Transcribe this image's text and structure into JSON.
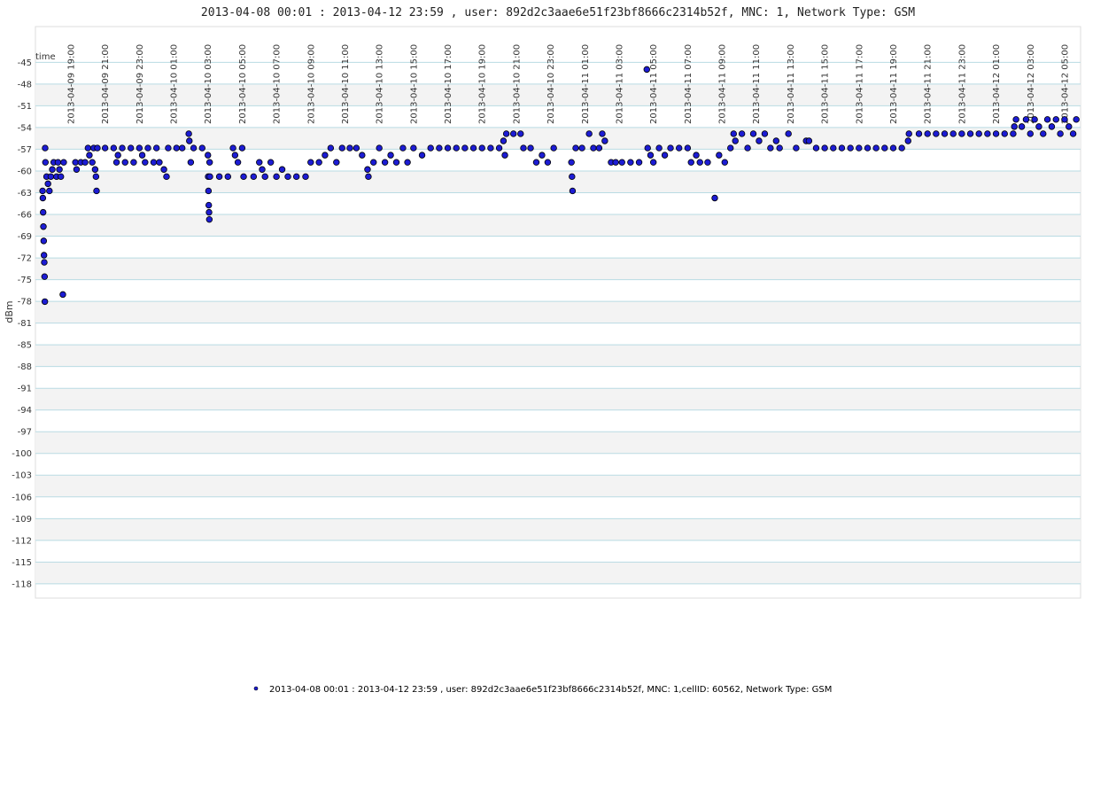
{
  "chart_data": {
    "type": "scatter",
    "title": "2013-04-08 00:01 : 2013-04-12 23:59 , user: 892d2c3aae6e51f23bf8666c2314b52f, MNC: 1, Network Type: GSM",
    "x_label": "time",
    "y_label": "dBm",
    "xlim": [
      "2013-04-09 16:56",
      "2013-04-12 05:56"
    ],
    "ylim": [
      -120,
      -40
    ],
    "xticks": [
      "2013-04-09 19:00",
      "2013-04-09 21:00",
      "2013-04-09 23:00",
      "2013-04-10 01:00",
      "2013-04-10 03:00",
      "2013-04-10 05:00",
      "2013-04-10 07:00",
      "2013-04-10 09:00",
      "2013-04-10 11:00",
      "2013-04-10 13:00",
      "2013-04-10 15:00",
      "2013-04-10 17:00",
      "2013-04-10 19:00",
      "2013-04-10 21:00",
      "2013-04-10 23:00",
      "2013-04-11 01:00",
      "2013-04-11 03:00",
      "2013-04-11 05:00",
      "2013-04-11 07:00",
      "2013-04-11 09:00",
      "2013-04-11 11:00",
      "2013-04-11 13:00",
      "2013-04-11 15:00",
      "2013-04-11 17:00",
      "2013-04-11 19:00",
      "2013-04-11 21:00",
      "2013-04-11 23:00",
      "2013-04-12 01:00",
      "2013-04-12 03:00",
      "2013-04-12 05:00"
    ],
    "yticks": [
      -45,
      {
        "value": -48.04,
        "label": "-48"
      },
      {
        "value": -51.08,
        "label": "-51"
      },
      {
        "value": -54.13,
        "label": "-54"
      },
      {
        "value": -57.17,
        "label": "-57"
      },
      {
        "value": -60.21,
        "label": "-60"
      },
      {
        "value": -63.25,
        "label": "-63"
      },
      {
        "value": -66.29,
        "label": "-66"
      },
      {
        "value": -69.33,
        "label": "-69"
      },
      {
        "value": -72.38,
        "label": "-72"
      },
      {
        "value": -75.42,
        "label": "-75"
      },
      {
        "value": -78.46,
        "label": "-78"
      },
      {
        "value": -81.5,
        "label": "-81"
      },
      {
        "value": -84.54,
        "label": "-85"
      },
      {
        "value": -87.58,
        "label": "-88"
      },
      {
        "value": -90.63,
        "label": "-91"
      },
      {
        "value": -93.67,
        "label": "-94"
      },
      {
        "value": -96.71,
        "label": "-97"
      },
      {
        "value": -99.75,
        "label": "-100"
      },
      {
        "value": -102.79,
        "label": "-103"
      },
      {
        "value": -105.83,
        "label": "-106"
      },
      {
        "value": -108.88,
        "label": "-109"
      },
      {
        "value": -111.92,
        "label": "-112"
      },
      {
        "value": -114.96,
        "label": "-115"
      },
      -118
    ],
    "grid": true,
    "x": [
      "2013-04-09 17:21",
      "2013-04-09 17:22",
      "2013-04-09 17:23",
      "2013-04-09 17:24",
      "2013-04-09 17:25",
      "2013-04-09 17:26",
      "2013-04-09 17:27",
      "2013-04-09 17:28",
      "2013-04-09 17:29",
      "2013-04-09 17:30",
      "2013-04-09 17:31",
      "2013-04-09 17:35",
      "2013-04-09 17:40",
      "2013-04-09 17:45",
      "2013-04-09 17:50",
      "2013-04-09 17:55",
      "2013-04-09 18:00",
      "2013-04-09 18:10",
      "2013-04-09 18:15",
      "2013-04-09 18:20",
      "2013-04-09 18:25",
      "2013-04-09 18:32",
      "2013-04-09 18:35",
      "2013-04-09 19:16",
      "2013-04-09 19:20",
      "2013-04-09 19:35",
      "2013-04-09 19:50",
      "2013-04-09 20:00",
      "2013-04-09 20:05",
      "2013-04-09 20:15",
      "2013-04-09 20:20",
      "2013-04-09 20:25",
      "2013-04-09 20:28",
      "2013-04-09 20:30",
      "2013-04-09 20:33",
      "2013-04-09 21:00",
      "2013-04-09 21:30",
      "2013-04-09 21:40",
      "2013-04-09 21:45",
      "2013-04-09 22:00",
      "2013-04-09 22:10",
      "2013-04-09 22:30",
      "2013-04-09 22:40",
      "2013-04-09 23:00",
      "2013-04-09 23:10",
      "2013-04-09 23:20",
      "2013-04-09 23:30",
      "2013-04-09 23:50",
      "2013-04-10 00:00",
      "2013-04-10 00:10",
      "2013-04-10 00:26",
      "2013-04-10 00:35",
      "2013-04-10 00:41",
      "2013-04-10 01:10",
      "2013-04-10 01:30",
      "2013-04-10 01:53",
      "2013-04-10 01:55",
      "2013-04-10 02:00",
      "2013-04-10 02:10",
      "2013-04-10 02:40",
      "2013-04-10 03:00",
      "2013-04-10 03:01",
      "2013-04-10 03:02",
      "2013-04-10 03:03",
      "2013-04-10 03:04",
      "2013-04-10 03:05",
      "2013-04-10 03:06",
      "2013-04-10 03:07",
      "2013-04-10 03:40",
      "2013-04-10 04:10",
      "2013-04-10 04:28",
      "2013-04-10 04:35",
      "2013-04-10 04:45",
      "2013-04-10 05:00",
      "2013-04-10 05:05",
      "2013-04-10 05:40",
      "2013-04-10 06:00",
      "2013-04-10 06:10",
      "2013-04-10 06:20",
      "2013-04-10 06:40",
      "2013-04-10 07:00",
      "2013-04-10 07:20",
      "2013-04-10 07:40",
      "2013-04-10 08:10",
      "2013-04-10 08:42",
      "2013-04-10 09:00",
      "2013-04-10 09:29",
      "2013-04-10 09:50",
      "2013-04-10 10:10",
      "2013-04-10 10:30",
      "2013-04-10 10:50",
      "2013-04-10 11:17",
      "2013-04-10 11:40",
      "2013-04-10 12:00",
      "2013-04-10 12:19",
      "2013-04-10 12:22",
      "2013-04-10 12:40",
      "2013-04-10 13:00",
      "2013-04-10 13:20",
      "2013-04-10 13:40",
      "2013-04-10 14:00",
      "2013-04-10 14:23",
      "2013-04-10 14:39",
      "2013-04-10 15:00",
      "2013-04-10 15:30",
      "2013-04-10 16:00",
      "2013-04-10 16:30",
      "2013-04-10 17:00",
      "2013-04-10 17:30",
      "2013-04-10 18:00",
      "2013-04-10 18:30",
      "2013-04-10 19:00",
      "2013-04-10 19:30",
      "2013-04-10 20:00",
      "2013-04-10 20:15",
      "2013-04-10 20:20",
      "2013-04-10 20:25",
      "2013-04-10 20:50",
      "2013-04-10 21:15",
      "2013-04-10 21:25",
      "2013-04-10 21:50",
      "2013-04-10 22:10",
      "2013-04-10 22:30",
      "2013-04-10 22:50",
      "2013-04-10 23:11",
      "2013-04-11 00:13",
      "2013-04-11 00:15",
      "2013-04-11 00:17",
      "2013-04-11 00:28",
      "2013-04-11 00:50",
      "2013-04-11 01:15",
      "2013-04-11 01:30",
      "2013-04-11 01:50",
      "2013-04-11 02:01",
      "2013-04-11 02:10",
      "2013-04-11 02:32",
      "2013-04-11 02:48",
      "2013-04-11 03:10",
      "2013-04-11 03:40",
      "2013-04-11 04:10",
      "2013-04-11 04:37",
      "2013-04-11 04:40",
      "2013-04-11 04:50",
      "2013-04-11 05:00",
      "2013-04-11 05:20",
      "2013-04-11 05:40",
      "2013-04-11 06:00",
      "2013-04-11 06:30",
      "2013-04-11 07:00",
      "2013-04-11 07:12",
      "2013-04-11 07:30",
      "2013-04-11 07:43",
      "2013-04-11 08:10",
      "2013-04-11 08:35",
      "2013-04-11 08:50",
      "2013-04-11 09:10",
      "2013-04-11 09:30",
      "2013-04-11 09:41",
      "2013-04-11 09:47",
      "2013-04-11 10:10",
      "2013-04-11 10:30",
      "2013-04-11 10:50",
      "2013-04-11 11:10",
      "2013-04-11 11:30",
      "2013-04-11 11:50",
      "2013-04-11 12:10",
      "2013-04-11 12:22",
      "2013-04-11 12:53",
      "2013-04-11 13:20",
      "2013-04-11 13:55",
      "2013-04-11 14:05",
      "2013-04-11 14:30",
      "2013-04-11 15:00",
      "2013-04-11 15:30",
      "2013-04-11 16:00",
      "2013-04-11 16:30",
      "2013-04-11 17:00",
      "2013-04-11 17:30",
      "2013-04-11 18:00",
      "2013-04-11 18:30",
      "2013-04-11 19:00",
      "2013-04-11 19:30",
      "2013-04-11 19:52",
      "2013-04-11 19:55",
      "2013-04-11 20:30",
      "2013-04-11 21:00",
      "2013-04-11 21:30",
      "2013-04-11 22:00",
      "2013-04-11 22:30",
      "2013-04-11 23:00",
      "2013-04-11 23:30",
      "2013-04-12 00:00",
      "2013-04-12 00:30",
      "2013-04-12 01:00",
      "2013-04-12 01:30",
      "2013-04-12 02:00",
      "2013-04-12 02:04",
      "2013-04-12 02:10",
      "2013-04-12 02:30",
      "2013-04-12 02:45",
      "2013-04-12 03:00",
      "2013-04-12 03:15",
      "2013-04-12 03:30",
      "2013-04-12 03:45",
      "2013-04-12 04:00",
      "2013-04-12 04:15",
      "2013-04-12 04:30",
      "2013-04-12 04:45",
      "2013-04-12 05:00",
      "2013-04-12 05:15",
      "2013-04-12 05:30",
      "2013-04-12 05:41"
    ],
    "series": [
      {
        "name": "2013-04-08 00:01 : 2013-04-12 23:59 , user: 892d2c3aae6e51f23bf8666c2314b52f, MNC: 1,cellID: 60562, Network Type: GSM",
        "color": "#1c1cd4",
        "values": [
          -63,
          -64,
          -66,
          -68,
          -70,
          -72,
          -73,
          -75,
          -78.5,
          -57,
          -59,
          -61,
          -62,
          -63,
          -61,
          -60,
          -59,
          -61,
          -59,
          -60,
          -61,
          -77.5,
          -59,
          -59,
          -60,
          -59,
          -59,
          -57,
          -58,
          -59,
          -57,
          -60,
          -61,
          -63,
          -57,
          -57,
          -57,
          -59,
          -58,
          -57,
          -59,
          -57,
          -59,
          -57,
          -58,
          -59,
          -57,
          -59,
          -57,
          -59,
          -60,
          -61,
          -57,
          -57,
          -57,
          -55,
          -56,
          -59,
          -57,
          -57,
          -58,
          -61,
          -63,
          -65,
          -66,
          -67,
          -59,
          -61,
          -61,
          -61,
          -57,
          -58,
          -59,
          -57,
          -61,
          -61,
          -59,
          -60,
          -61,
          -59,
          -61,
          -60,
          -61,
          -61,
          -61,
          -59,
          -59,
          -58,
          -57,
          -59,
          -57,
          -57,
          -57,
          -58,
          -60,
          -61,
          -59,
          -57,
          -59,
          -58,
          -59,
          -57,
          -59,
          -57,
          -58,
          -57,
          -57,
          -57,
          -57,
          -57,
          -57,
          -57,
          -57,
          -57,
          -56,
          -58,
          -55,
          -55,
          -55,
          -57,
          -57,
          -59,
          -58,
          -59,
          -57,
          -59,
          -61,
          -63,
          -57,
          -57,
          -55,
          -57,
          -57,
          -55,
          -56,
          -59,
          -59,
          -59,
          -59,
          -59,
          -46,
          -57,
          -58,
          -59,
          -57,
          -58,
          -57,
          -57,
          -57,
          -59,
          -58,
          -59,
          -59,
          -64,
          -58,
          -59,
          -57,
          -55,
          -56,
          -55,
          -57,
          -55,
          -56,
          -55,
          -57,
          -56,
          -57,
          -55,
          -57,
          -56,
          -56,
          -57,
          -57,
          -57,
          -57,
          -57,
          -57,
          -57,
          -57,
          -57,
          -57,
          -57,
          -56,
          -55,
          -55,
          -55,
          -55,
          -55,
          -55,
          -55,
          -55,
          -55,
          -55,
          -55,
          -55,
          -55,
          -54,
          -53,
          -54,
          -53,
          -55,
          -53,
          -54,
          -55,
          -53,
          -54,
          -53,
          -55,
          -53,
          -54,
          -55,
          -53
        ]
      }
    ]
  }
}
